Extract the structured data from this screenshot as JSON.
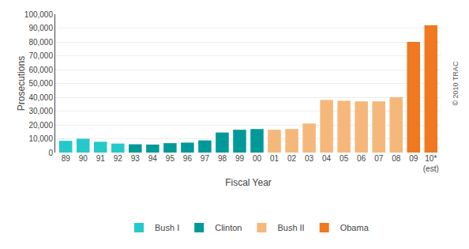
{
  "chart_data": {
    "type": "bar",
    "categories": [
      "89",
      "90",
      "91",
      "92",
      "93",
      "94",
      "95",
      "96",
      "97",
      "98",
      "99",
      "00",
      "01",
      "02",
      "03",
      "04",
      "05",
      "06",
      "07",
      "08",
      "09",
      "10*\n(est)"
    ],
    "series": [
      {
        "name": "Bush I",
        "color": "#26c9c9",
        "values": [
          8500,
          10000,
          7800,
          6500,
          null,
          null,
          null,
          null,
          null,
          null,
          null,
          null,
          null,
          null,
          null,
          null,
          null,
          null,
          null,
          null,
          null,
          null
        ]
      },
      {
        "name": "Clinton",
        "color": "#009999",
        "values": [
          null,
          null,
          null,
          null,
          6000,
          5800,
          6800,
          7200,
          8800,
          14500,
          16500,
          17000,
          null,
          null,
          null,
          null,
          null,
          null,
          null,
          null,
          null,
          null
        ]
      },
      {
        "name": "Bush II",
        "color": "#f5b87a",
        "values": [
          null,
          null,
          null,
          null,
          null,
          null,
          null,
          null,
          null,
          null,
          null,
          null,
          16500,
          17000,
          21000,
          38000,
          37500,
          37000,
          37000,
          40000,
          null,
          null
        ]
      },
      {
        "name": "Obama",
        "color": "#f07820",
        "values": [
          null,
          null,
          null,
          null,
          null,
          null,
          null,
          null,
          null,
          null,
          null,
          null,
          null,
          null,
          null,
          null,
          null,
          null,
          null,
          null,
          80000,
          92000
        ]
      }
    ],
    "xlabel": "Fiscal Year",
    "ylabel": "Prosecutions",
    "ylim": [
      0,
      100000
    ],
    "yticks": [
      0,
      {
        "value": 10000,
        "label": "10,000"
      },
      {
        "value": 20000,
        "label": "20,000"
      },
      {
        "value": 30000,
        "label": "30,000"
      },
      {
        "value": 40000,
        "label": "40,000"
      },
      {
        "value": 50000,
        "label": "50,000"
      },
      {
        "value": 60000,
        "label": "60,000"
      },
      {
        "value": 70000,
        "label": "70,000"
      },
      {
        "value": 80000,
        "label": "80,000"
      },
      {
        "value": 90000,
        "label": "90,000"
      },
      {
        "value": 100000,
        "label": "100,000"
      }
    ],
    "grid": true,
    "legend": "bottom",
    "annotations": [
      "© 2010 TRAC"
    ]
  }
}
